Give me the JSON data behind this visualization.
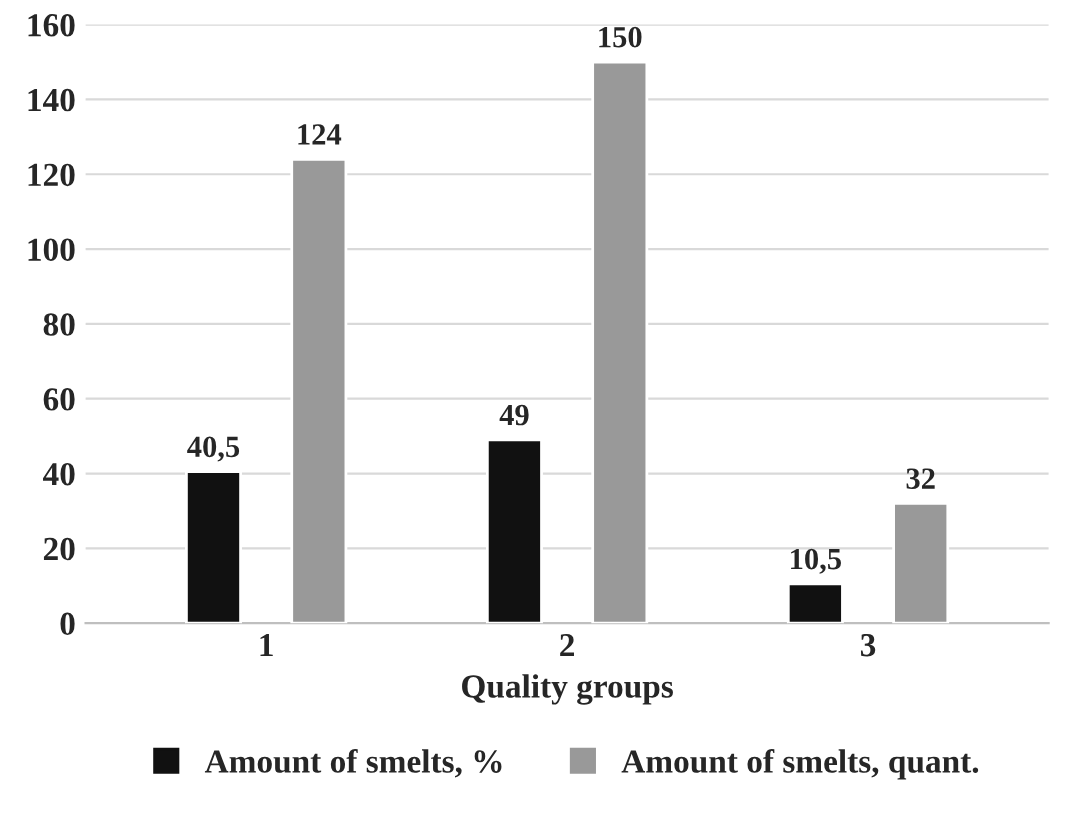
{
  "chart_data": {
    "type": "bar",
    "xlabel": "Quality groups",
    "categories": [
      "1",
      "2",
      "3"
    ],
    "series": [
      {
        "name": "Amount of smelts, %",
        "color": "#111111",
        "values": [
          40.5,
          49,
          10.5
        ],
        "value_labels": [
          "40,5",
          "49",
          "10,5"
        ]
      },
      {
        "name": "Amount of smelts, quant.",
        "color": "#999999",
        "values": [
          124,
          150,
          32
        ],
        "value_labels": [
          "124",
          "150",
          "32"
        ]
      }
    ],
    "ylim": [
      0,
      160
    ],
    "yticks": [
      0,
      20,
      40,
      60,
      80,
      100,
      120,
      140,
      160
    ],
    "grid": "y",
    "legend": "bottom"
  }
}
